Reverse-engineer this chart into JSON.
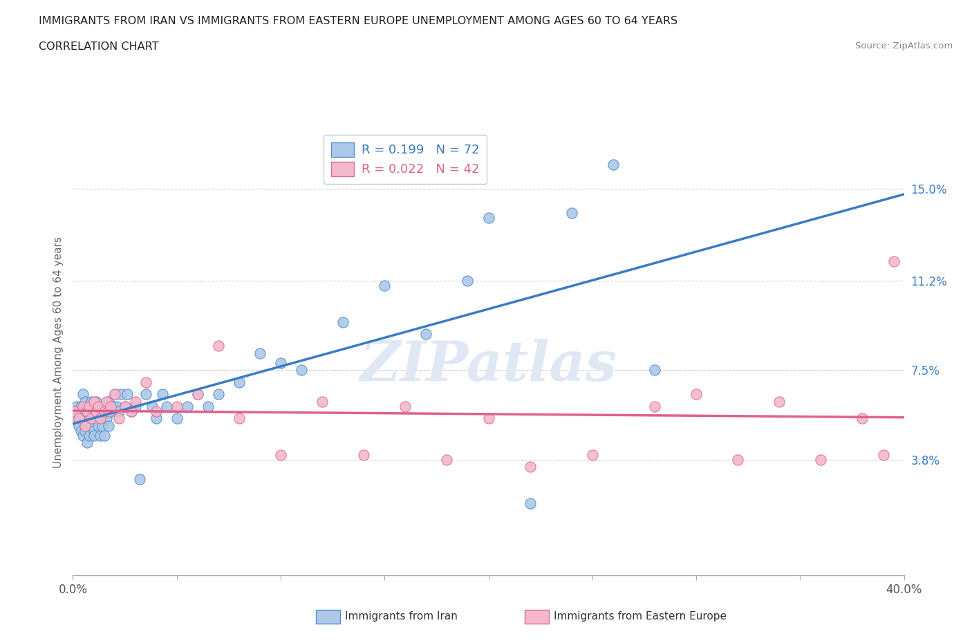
{
  "title_line1": "IMMIGRANTS FROM IRAN VS IMMIGRANTS FROM EASTERN EUROPE UNEMPLOYMENT AMONG AGES 60 TO 64 YEARS",
  "title_line2": "CORRELATION CHART",
  "source_text": "Source: ZipAtlas.com",
  "ylabel": "Unemployment Among Ages 60 to 64 years",
  "xlim": [
    0.0,
    0.4
  ],
  "ylim": [
    -0.01,
    0.175
  ],
  "ytick_positions": [
    0.038,
    0.075,
    0.112,
    0.15
  ],
  "ytick_labels": [
    "3.8%",
    "7.5%",
    "11.2%",
    "15.0%"
  ],
  "iran_R": 0.199,
  "iran_N": 72,
  "ee_R": 0.022,
  "ee_N": 42,
  "iran_color": "#adc8e8",
  "ee_color": "#f5b8cc",
  "iran_line_color": "#3a7cc4",
  "ee_line_color": "#e06090",
  "iran_edge_color": "#5090d0",
  "ee_edge_color": "#d87090",
  "background_color": "#ffffff",
  "watermark_color": "#e0e8f4",
  "iran_scatter_x": [
    0.001,
    0.002,
    0.003,
    0.003,
    0.004,
    0.004,
    0.005,
    0.005,
    0.005,
    0.006,
    0.006,
    0.006,
    0.007,
    0.007,
    0.007,
    0.008,
    0.008,
    0.008,
    0.009,
    0.009,
    0.009,
    0.01,
    0.01,
    0.01,
    0.011,
    0.011,
    0.012,
    0.012,
    0.013,
    0.013,
    0.014,
    0.014,
    0.015,
    0.015,
    0.016,
    0.016,
    0.017,
    0.017,
    0.018,
    0.019,
    0.02,
    0.021,
    0.022,
    0.023,
    0.025,
    0.026,
    0.028,
    0.03,
    0.032,
    0.035,
    0.038,
    0.04,
    0.043,
    0.045,
    0.05,
    0.055,
    0.06,
    0.065,
    0.07,
    0.08,
    0.09,
    0.1,
    0.11,
    0.13,
    0.15,
    0.17,
    0.19,
    0.2,
    0.22,
    0.24,
    0.26,
    0.28
  ],
  "iran_scatter_y": [
    0.055,
    0.06,
    0.052,
    0.058,
    0.05,
    0.06,
    0.048,
    0.055,
    0.065,
    0.05,
    0.058,
    0.062,
    0.052,
    0.06,
    0.045,
    0.055,
    0.06,
    0.048,
    0.052,
    0.058,
    0.062,
    0.05,
    0.055,
    0.048,
    0.058,
    0.062,
    0.052,
    0.06,
    0.048,
    0.055,
    0.06,
    0.052,
    0.058,
    0.048,
    0.055,
    0.06,
    0.052,
    0.062,
    0.058,
    0.06,
    0.065,
    0.06,
    0.058,
    0.065,
    0.06,
    0.065,
    0.058,
    0.06,
    0.03,
    0.065,
    0.06,
    0.055,
    0.065,
    0.06,
    0.055,
    0.06,
    0.065,
    0.06,
    0.065,
    0.07,
    0.082,
    0.078,
    0.075,
    0.095,
    0.11,
    0.09,
    0.112,
    0.138,
    0.02,
    0.14,
    0.16,
    0.075
  ],
  "ee_scatter_x": [
    0.001,
    0.003,
    0.005,
    0.006,
    0.007,
    0.008,
    0.009,
    0.01,
    0.011,
    0.012,
    0.013,
    0.015,
    0.016,
    0.017,
    0.018,
    0.02,
    0.022,
    0.025,
    0.028,
    0.03,
    0.035,
    0.04,
    0.05,
    0.06,
    0.07,
    0.08,
    0.1,
    0.12,
    0.14,
    0.16,
    0.18,
    0.2,
    0.22,
    0.25,
    0.28,
    0.3,
    0.32,
    0.34,
    0.36,
    0.38,
    0.39,
    0.395
  ],
  "ee_scatter_y": [
    0.058,
    0.055,
    0.06,
    0.052,
    0.058,
    0.06,
    0.055,
    0.062,
    0.058,
    0.06,
    0.055,
    0.058,
    0.062,
    0.058,
    0.06,
    0.065,
    0.055,
    0.06,
    0.058,
    0.062,
    0.07,
    0.058,
    0.06,
    0.065,
    0.085,
    0.055,
    0.04,
    0.062,
    0.04,
    0.06,
    0.038,
    0.055,
    0.035,
    0.04,
    0.06,
    0.065,
    0.038,
    0.062,
    0.038,
    0.055,
    0.04,
    0.12
  ]
}
